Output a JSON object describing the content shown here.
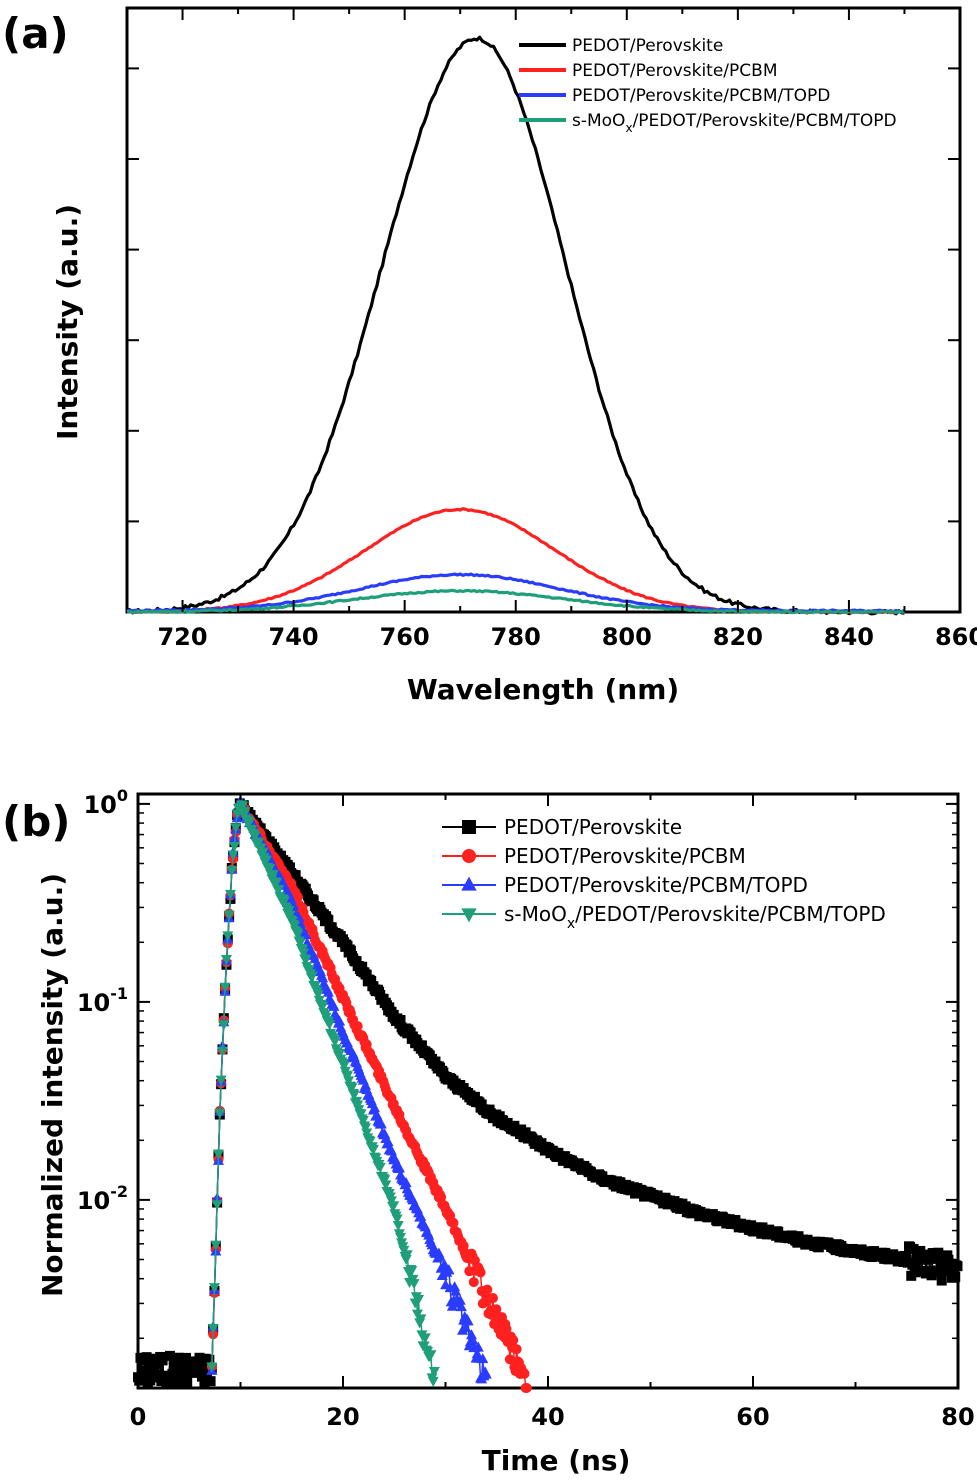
{
  "chart_data": [
    {
      "id": "a",
      "type": "line",
      "panel_label": "(a)",
      "xlabel": "Wavelength (nm)",
      "ylabel": "Intensity (a.u.)",
      "xlim": [
        710,
        860
      ],
      "ylim": [
        0,
        1
      ],
      "xticks": [
        720,
        740,
        760,
        780,
        800,
        820,
        840,
        860
      ],
      "xtick_labels": [
        "720",
        "740",
        "760",
        "780",
        "800",
        "820",
        "840",
        "860"
      ],
      "yticks_unlabeled": [
        0.15,
        0.3,
        0.45,
        0.6,
        0.75,
        0.9
      ],
      "x_range_data": [
        710,
        850
      ],
      "legend_position": "top-right",
      "series": [
        {
          "name": "PEDOT/Perovskite",
          "color": "#000000",
          "peak": 773,
          "amplitude": 0.95,
          "sigma_left": 17,
          "sigma_right": 16,
          "baseline": 0.0
        },
        {
          "name": "PEDOT/Perovskite/PCBM",
          "color": "#ff2020",
          "peak": 770,
          "amplitude": 0.17,
          "sigma_left": 17,
          "sigma_right": 17,
          "baseline": 0.0
        },
        {
          "name": "PEDOT/Perovskite/PCBM/TOPD",
          "color": "#2a3cff",
          "peak": 770,
          "amplitude": 0.06,
          "sigma_left": 18,
          "sigma_right": 18,
          "baseline": 0.002
        },
        {
          "name": "s-MoO",
          "name_subscript": "x",
          "name_suffix": "/PEDOT/Perovskite/PCBM/TOPD",
          "color": "#1f9e7a",
          "peak": 770,
          "amplitude": 0.035,
          "sigma_left": 19,
          "sigma_right": 19,
          "baseline": 0.0
        }
      ]
    },
    {
      "id": "b",
      "type": "scatter",
      "panel_label": "(b)",
      "xlabel": "Time (ns)",
      "ylabel": "Normalized intensity (a.u.)",
      "xlim": [
        0,
        80
      ],
      "ylim_log10": [
        -2.95,
        0.05
      ],
      "yscale": "log",
      "xticks": [
        0,
        20,
        40,
        60,
        80
      ],
      "xtick_labels": [
        "0",
        "20",
        "40",
        "60",
        "80"
      ],
      "yticks": [
        {
          "value": 1,
          "base": "10",
          "exp": "0"
        },
        {
          "value": 0.1,
          "base": "10",
          "exp": "-1"
        },
        {
          "value": 0.01,
          "base": "10",
          "exp": "-2"
        }
      ],
      "legend_position": "top-right",
      "series": [
        {
          "name": "PEDOT/Perovskite",
          "color": "#000000",
          "marker": "square",
          "peak_time": 10,
          "t_end": 80,
          "decay": [
            [
              10,
              1.0
            ],
            [
              15,
              0.45
            ],
            [
              20,
              0.2
            ],
            [
              25,
              0.085
            ],
            [
              30,
              0.042
            ],
            [
              35,
              0.026
            ],
            [
              40,
              0.018
            ],
            [
              45,
              0.013
            ],
            [
              50,
              0.0105
            ],
            [
              55,
              0.0085
            ],
            [
              60,
              0.0072
            ],
            [
              65,
              0.0062
            ],
            [
              70,
              0.0055
            ],
            [
              75,
              0.005
            ],
            [
              80,
              0.0045
            ]
          ]
        },
        {
          "name": "PEDOT/Perovskite/PCBM",
          "color": "#ff2020",
          "marker": "circle",
          "peak_time": 10,
          "t_end": 38,
          "decay": [
            [
              10,
              1.0
            ],
            [
              15,
              0.38
            ],
            [
              20,
              0.105
            ],
            [
              25,
              0.03
            ],
            [
              30,
              0.009
            ],
            [
              35,
              0.0025
            ],
            [
              38,
              0.0012
            ]
          ]
        },
        {
          "name": "PEDOT/Perovskite/PCBM/TOPD",
          "color": "#2a3cff",
          "marker": "triangle-up",
          "peak_time": 10,
          "t_end": 34,
          "decay": [
            [
              10,
              1.0
            ],
            [
              15,
              0.32
            ],
            [
              20,
              0.07
            ],
            [
              25,
              0.016
            ],
            [
              30,
              0.0042
            ],
            [
              34,
              0.0012
            ]
          ]
        },
        {
          "name": "s-MoO",
          "name_subscript": "x",
          "name_suffix": "/PEDOT/Perovskite/PCBM/TOPD",
          "color": "#1f9e7a",
          "marker": "triangle-down",
          "peak_time": 10,
          "t_end": 29,
          "decay": [
            [
              10,
              1.0
            ],
            [
              15,
              0.26
            ],
            [
              20,
              0.048
            ],
            [
              25,
              0.009
            ],
            [
              29,
              0.0012
            ]
          ]
        }
      ],
      "pre_pulse_level": 0.0014
    }
  ]
}
